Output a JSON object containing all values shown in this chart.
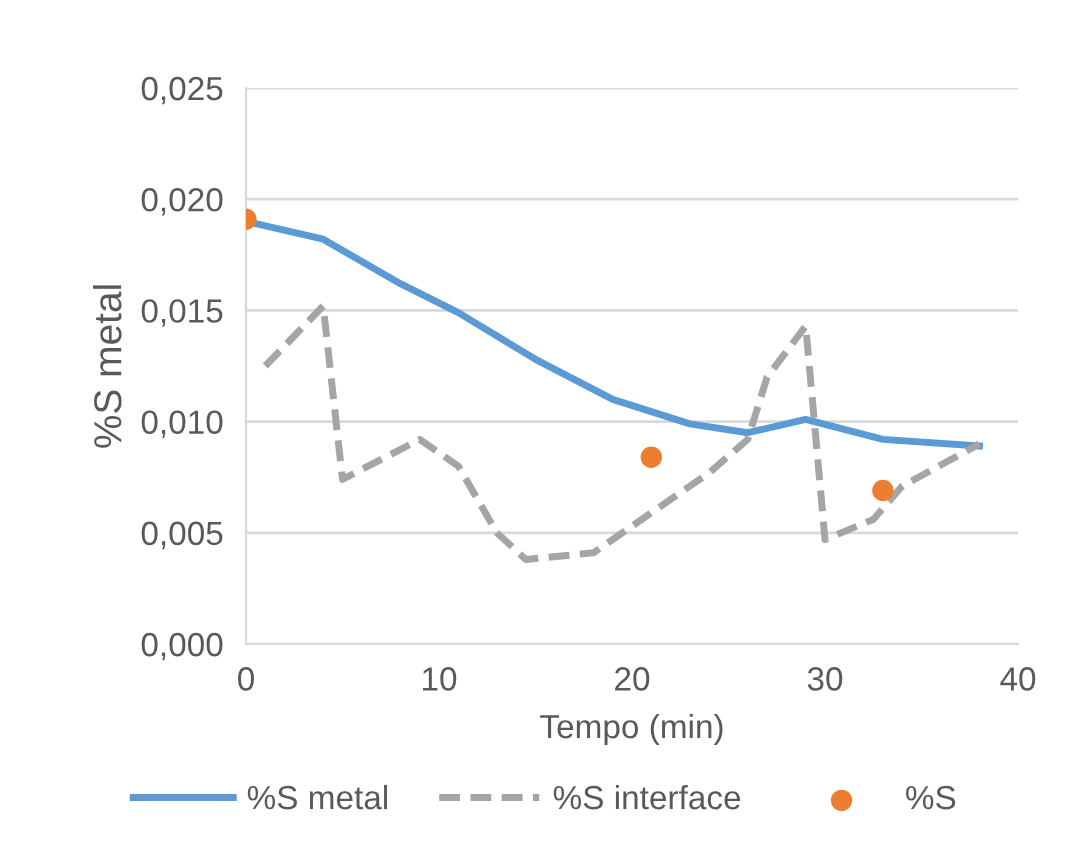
{
  "chart_data": {
    "type": "line",
    "xlabel": "Tempo (min)",
    "ylabel": "%S metal",
    "xlim": [
      0,
      40
    ],
    "xticks": [
      0,
      10,
      20,
      30,
      40
    ],
    "ylim": [
      0,
      0.025
    ],
    "yticks": [
      {
        "value": 0,
        "label": "0,000"
      },
      {
        "value": 0.005,
        "label": "0,005"
      },
      {
        "value": 0.01,
        "label": "0,010"
      },
      {
        "value": 0.015,
        "label": "0,015"
      },
      {
        "value": 0.02,
        "label": "0,020"
      },
      {
        "value": 0.025,
        "label": "0,025"
      }
    ],
    "grid": "y",
    "legend": "bottom",
    "series": [
      {
        "name": "%S metal",
        "color": "#5b9bd5",
        "line_style": "solid",
        "x": [
          0,
          4,
          8,
          11,
          15,
          19,
          23,
          26,
          29,
          33,
          38
        ],
        "values": [
          0.019,
          0.0182,
          0.0162,
          0.0149,
          0.0128,
          0.011,
          0.0099,
          0.0095,
          0.0101,
          0.0092,
          0.0089
        ]
      },
      {
        "name": "%S interface",
        "color": "#a5a5a5",
        "line_style": "dashed",
        "x": [
          1,
          4,
          5,
          9,
          11,
          13,
          14.5,
          18,
          21,
          24,
          26,
          27,
          29,
          30,
          32.5,
          34,
          38
        ],
        "values": [
          0.0125,
          0.0152,
          0.0074,
          0.0092,
          0.008,
          0.005,
          0.0038,
          0.0041,
          0.0059,
          0.0077,
          0.0092,
          0.012,
          0.0143,
          0.0047,
          0.0056,
          0.0071,
          0.009
        ]
      },
      {
        "name": "%S",
        "type": "scatter",
        "color": "#ed7d31",
        "marker": "circle",
        "x": [
          0,
          21,
          33
        ],
        "values": [
          0.0191,
          0.0084,
          0.0069
        ]
      }
    ]
  }
}
